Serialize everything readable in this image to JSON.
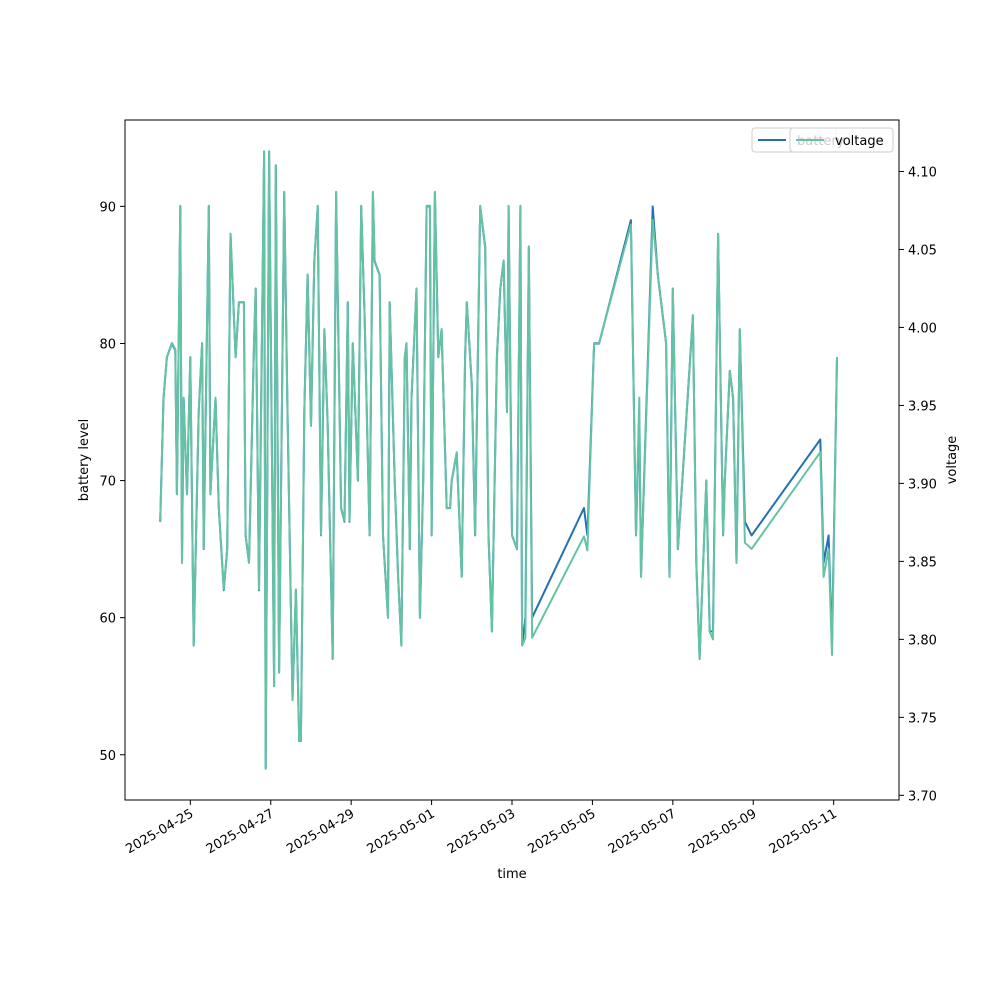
{
  "chart_data": {
    "type": "line",
    "xlabel": "time",
    "ylabel": "battery level",
    "y2label": "voltage",
    "legend": "upper right",
    "x": [
      "2025-04-24T06:00",
      "2025-04-24T08:00",
      "2025-04-24T10:00",
      "2025-04-24T13:00",
      "2025-04-24T15:00",
      "2025-04-24T16:00",
      "2025-04-24T18:00",
      "2025-04-24T19:00",
      "2025-04-24T20:00",
      "2025-04-24T22:00",
      "2025-04-25T00:00",
      "2025-04-25T02:00",
      "2025-04-25T05:00",
      "2025-04-25T07:00",
      "2025-04-25T08:00",
      "2025-04-25T11:00",
      "2025-04-25T12:00",
      "2025-04-25T15:00",
      "2025-04-25T17:00",
      "2025-04-25T20:00",
      "2025-04-25T22:00",
      "2025-04-26T00:00",
      "2025-04-26T03:00",
      "2025-04-26T05:00",
      "2025-04-26T08:00",
      "2025-04-26T09:00",
      "2025-04-26T11:00",
      "2025-04-26T14:00",
      "2025-04-26T15:00",
      "2025-04-26T17:00",
      "2025-04-26T20:00",
      "2025-04-26T21:00",
      "2025-04-26T23:00",
      "2025-04-27T02:00",
      "2025-04-27T03:00",
      "2025-04-27T05:00",
      "2025-04-27T08:00",
      "2025-04-27T10:00",
      "2025-04-27T13:00",
      "2025-04-27T15:00",
      "2025-04-27T17:00",
      "2025-04-27T18:00",
      "2025-04-27T20:00",
      "2025-04-27T22:00",
      "2025-04-28T00:00",
      "2025-04-28T02:00",
      "2025-04-28T04:00",
      "2025-04-28T06:00",
      "2025-04-28T08:00",
      "2025-04-28T10:00",
      "2025-04-28T13:00",
      "2025-04-28T15:00",
      "2025-04-28T18:00",
      "2025-04-28T20:00",
      "2025-04-28T22:00",
      "2025-04-28T23:00",
      "2025-04-29T01:00",
      "2025-04-29T04:00",
      "2025-04-29T06:00",
      "2025-04-29T08:00",
      "2025-04-29T11:00",
      "2025-04-29T13:00",
      "2025-04-29T14:00",
      "2025-04-29T17:00",
      "2025-04-29T19:00",
      "2025-04-29T22:00",
      "2025-04-29T23:00",
      "2025-04-30T02:00",
      "2025-04-30T04:00",
      "2025-04-30T06:00",
      "2025-04-30T08:00",
      "2025-04-30T09:00",
      "2025-04-30T11:00",
      "2025-04-30T12:00",
      "2025-04-30T15:00",
      "2025-04-30T17:00",
      "2025-04-30T19:00",
      "2025-04-30T21:00",
      "2025-04-30T23:00",
      "2025-05-01T00:00",
      "2025-05-01T02:00",
      "2025-05-01T04:00",
      "2025-05-01T06:00",
      "2025-05-01T09:00",
      "2025-05-01T11:00",
      "2025-05-01T12:00",
      "2025-05-01T15:00",
      "2025-05-01T18:00",
      "2025-05-01T20:00",
      "2025-05-01T21:00",
      "2025-05-02T00:00",
      "2025-05-02T02:00",
      "2025-05-02T05:00",
      "2025-05-02T08:00",
      "2025-05-02T10:00",
      "2025-05-02T12:00",
      "2025-05-02T15:00",
      "2025-05-02T17:00",
      "2025-05-02T19:00",
      "2025-05-02T21:00",
      "2025-05-02T22:00",
      "2025-05-03T00:00",
      "2025-05-03T03:00",
      "2025-05-03T05:00",
      "2025-05-03T06:00",
      "2025-05-03T08:00",
      "2025-05-03T10:00",
      "2025-05-03T12:00",
      "2025-05-04T19:00",
      "2025-05-04T21:00",
      "2025-05-05T01:00",
      "2025-05-05T04:00",
      "2025-05-05T23:00",
      "2025-05-06T02:00",
      "2025-05-06T04:00",
      "2025-05-06T05:00",
      "2025-05-06T12:00",
      "2025-05-06T15:00",
      "2025-05-06T20:00",
      "2025-05-06T22:00",
      "2025-05-07T00:00",
      "2025-05-07T03:00",
      "2025-05-07T12:00",
      "2025-05-07T14:00",
      "2025-05-07T16:00",
      "2025-05-07T20:00",
      "2025-05-07T22:00",
      "2025-05-08T00:00",
      "2025-05-08T03:00",
      "2025-05-08T06:00",
      "2025-05-08T07:00",
      "2025-05-08T10:00",
      "2025-05-08T12:00",
      "2025-05-08T14:00",
      "2025-05-08T16:00",
      "2025-05-08T19:00",
      "2025-05-08T23:00",
      "2025-05-10T16:00",
      "2025-05-10T18:00",
      "2025-05-10T21:00",
      "2025-05-10T23:00",
      "2025-05-11T02:00"
    ],
    "series": [
      {
        "name": "battery",
        "color": "#2271b1",
        "values": [
          67,
          76,
          79,
          80,
          79.5,
          69,
          90,
          64,
          76,
          69,
          79,
          58,
          75,
          80,
          65,
          90,
          69,
          76,
          68,
          62,
          65,
          88,
          79,
          83,
          83,
          66,
          64,
          80,
          84,
          62,
          94,
          49,
          94,
          55,
          93,
          56,
          91,
          75,
          54,
          62,
          51,
          51,
          75,
          85,
          74,
          86,
          90,
          66,
          81,
          74,
          57,
          91,
          68,
          67,
          83,
          67,
          80,
          70,
          90,
          82,
          66,
          91,
          86,
          85,
          66,
          60,
          83,
          70,
          63,
          58,
          79,
          80,
          65,
          76,
          84,
          60,
          70,
          90,
          90,
          66,
          91,
          79,
          81,
          68,
          68,
          70,
          72,
          63,
          79,
          83,
          77,
          66,
          90,
          87,
          66,
          59,
          79,
          84,
          86,
          75,
          90,
          66,
          65,
          90,
          58,
          60,
          87,
          60,
          68,
          66,
          80,
          80,
          89,
          66,
          75,
          63,
          90,
          85,
          80,
          63,
          84,
          65,
          82,
          64,
          57,
          70,
          59,
          59,
          88,
          66,
          70,
          78,
          76,
          64,
          81,
          67,
          66,
          73,
          64,
          66,
          58,
          79
        ]
      },
      {
        "name": "voltage",
        "color": "#66c2a5",
        "axis": "y2",
        "values": [
          3.876,
          3.955,
          3.981,
          3.99,
          3.986,
          3.893,
          4.078,
          3.849,
          3.955,
          3.893,
          3.981,
          3.796,
          3.946,
          3.99,
          3.858,
          4.078,
          3.893,
          3.955,
          3.884,
          3.832,
          3.858,
          4.06,
          3.981,
          4.016,
          4.016,
          3.867,
          3.849,
          3.99,
          4.025,
          3.832,
          4.113,
          3.717,
          4.113,
          3.77,
          4.104,
          3.779,
          4.087,
          3.946,
          3.761,
          3.832,
          3.735,
          3.735,
          3.946,
          4.034,
          3.937,
          4.043,
          4.078,
          3.867,
          3.999,
          3.937,
          3.788,
          4.087,
          3.884,
          3.876,
          4.016,
          3.876,
          3.99,
          3.902,
          4.078,
          4.008,
          3.867,
          4.087,
          4.043,
          4.034,
          3.867,
          3.814,
          4.016,
          3.902,
          3.84,
          3.796,
          3.981,
          3.99,
          3.858,
          3.955,
          4.025,
          3.814,
          3.902,
          4.078,
          4.078,
          3.867,
          4.087,
          3.981,
          3.999,
          3.884,
          3.884,
          3.902,
          3.92,
          3.84,
          3.981,
          4.016,
          3.964,
          3.867,
          4.078,
          4.052,
          3.867,
          3.805,
          3.981,
          4.025,
          4.043,
          3.946,
          4.078,
          3.867,
          3.858,
          4.078,
          3.796,
          3.801,
          4.052,
          3.801,
          3.866,
          3.857,
          3.99,
          3.99,
          4.066,
          3.867,
          3.955,
          3.84,
          4.069,
          4.034,
          3.99,
          3.84,
          4.025,
          3.858,
          4.008,
          3.849,
          3.788,
          3.902,
          3.805,
          3.8,
          4.06,
          3.867,
          3.902,
          3.972,
          3.955,
          3.849,
          3.999,
          3.862,
          3.858,
          3.92,
          3.84,
          3.858,
          3.79,
          3.981
        ]
      }
    ],
    "xlim": [
      "2025-04-23T09:00",
      "2025-05-12T15:00"
    ],
    "xticks": [
      "2025-04-25",
      "2025-04-27",
      "2025-04-29",
      "2025-05-01",
      "2025-05-03",
      "2025-05-05",
      "2025-05-07",
      "2025-05-09",
      "2025-05-11"
    ],
    "ylim": [
      46.7,
      96.3
    ],
    "yticks": [
      50,
      60,
      70,
      80,
      90
    ],
    "y2lim": [
      3.697,
      4.133
    ],
    "y2ticks": [
      {
        "value": 3.7,
        "label": "3.70"
      },
      3.75,
      {
        "value": 3.8,
        "label": "3.80"
      },
      3.85,
      {
        "value": 3.9,
        "label": "3.90"
      },
      3.95,
      {
        "value": 4.0,
        "label": "4.00"
      },
      4.05,
      {
        "value": 4.1,
        "label": "4.10"
      }
    ]
  }
}
